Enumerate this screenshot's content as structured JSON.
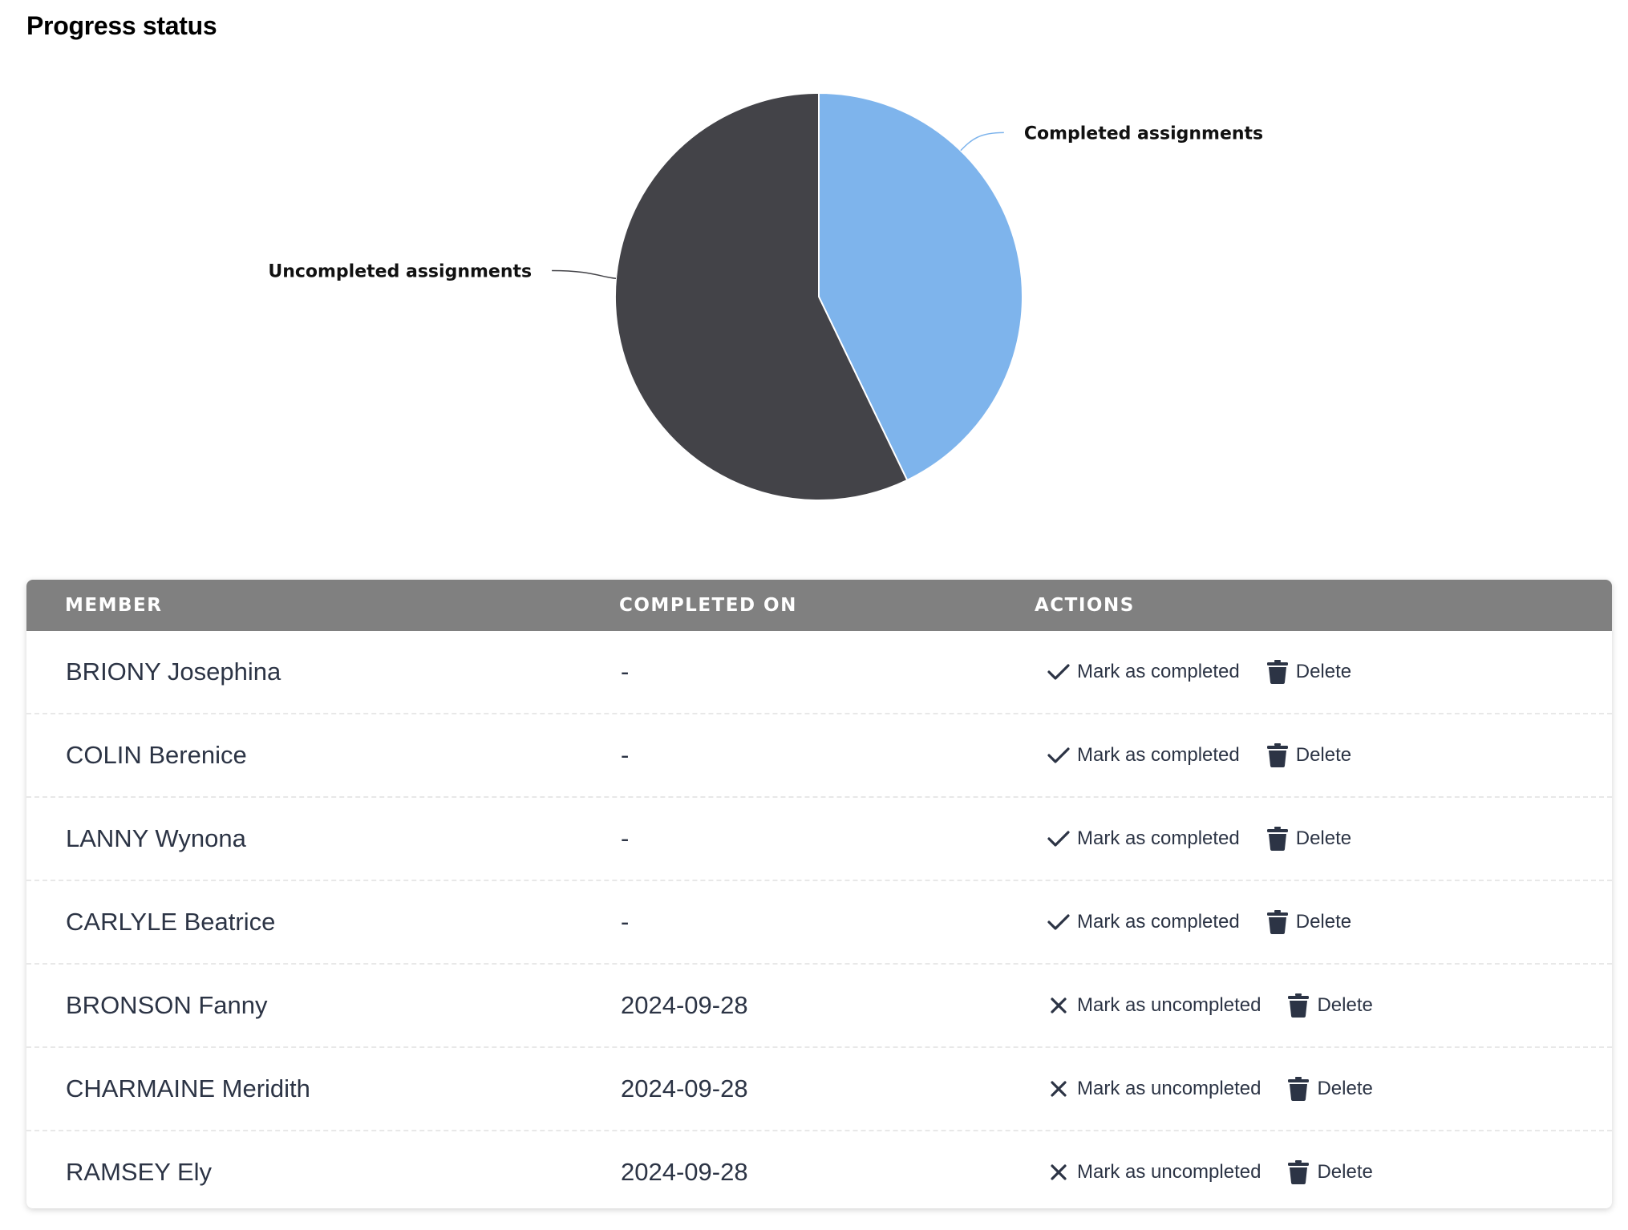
{
  "page_title": "Progress status",
  "colors": {
    "completed": "#7eb4ec",
    "uncompleted": "#434348",
    "table_header_bg": "#808080",
    "text": "#2c3445"
  },
  "chart_data": {
    "type": "pie",
    "title": "",
    "slices": [
      {
        "label": "Completed assignments",
        "value": 3,
        "color": "#7eb4ec"
      },
      {
        "label": "Uncompleted assignments",
        "value": 4,
        "color": "#434348"
      }
    ]
  },
  "table": {
    "headers": {
      "member": "MEMBER",
      "completed_on": "COMPLETED ON",
      "actions": "ACTIONS"
    },
    "rows": [
      {
        "member": "BRIONY Josephina",
        "completed_on": "-",
        "toggle_label": "Mark as completed",
        "toggle_icon": "check-icon",
        "delete_label": "Delete"
      },
      {
        "member": "COLIN Berenice",
        "completed_on": "-",
        "toggle_label": "Mark as completed",
        "toggle_icon": "check-icon",
        "delete_label": "Delete"
      },
      {
        "member": "LANNY Wynona",
        "completed_on": "-",
        "toggle_label": "Mark as completed",
        "toggle_icon": "check-icon",
        "delete_label": "Delete"
      },
      {
        "member": "CARLYLE Beatrice",
        "completed_on": "-",
        "toggle_label": "Mark as completed",
        "toggle_icon": "check-icon",
        "delete_label": "Delete"
      },
      {
        "member": "BRONSON Fanny",
        "completed_on": "2024-09-28",
        "toggle_label": "Mark as uncompleted",
        "toggle_icon": "x-icon",
        "delete_label": "Delete"
      },
      {
        "member": "CHARMAINE Meridith",
        "completed_on": "2024-09-28",
        "toggle_label": "Mark as uncompleted",
        "toggle_icon": "x-icon",
        "delete_label": "Delete"
      },
      {
        "member": "RAMSEY Ely",
        "completed_on": "2024-09-28",
        "toggle_label": "Mark as uncompleted",
        "toggle_icon": "x-icon",
        "delete_label": "Delete"
      }
    ]
  }
}
